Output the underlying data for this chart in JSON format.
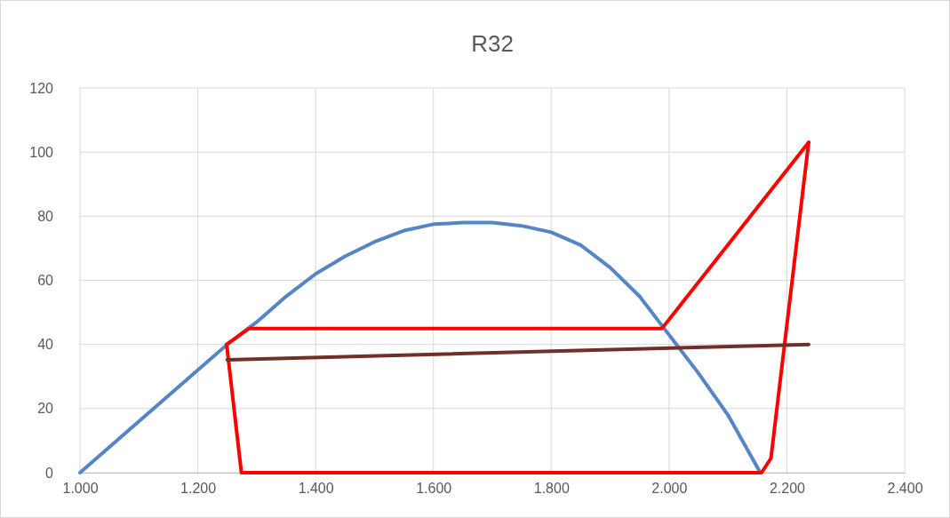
{
  "chart_data": {
    "type": "line",
    "title": "R32",
    "xlim": [
      1000,
      2400
    ],
    "xticks": [
      {
        "value": 1000,
        "label": "1.000"
      },
      {
        "value": 1200,
        "label": "1.200"
      },
      {
        "value": 1400,
        "label": "1.400"
      },
      {
        "value": 1600,
        "label": "1.600"
      },
      {
        "value": 1800,
        "label": "1.800"
      },
      {
        "value": 2000,
        "label": "2.000"
      },
      {
        "value": 2200,
        "label": "2.200"
      },
      {
        "value": 2400,
        "label": "2.400"
      }
    ],
    "ylim": [
      0,
      120
    ],
    "yticks": [
      0,
      20,
      40,
      60,
      80,
      100,
      120
    ],
    "grid": true,
    "marker": "none",
    "line_style": "solid",
    "series": [
      {
        "color": "#5585c5",
        "x": [
          1000,
          1100,
          1200,
          1250,
          1300,
          1350,
          1400,
          1450,
          1500,
          1550,
          1600,
          1650,
          1700,
          1750,
          1800,
          1850,
          1900,
          1950,
          2000,
          2050,
          2100,
          2155
        ],
        "values": [
          0,
          16,
          32,
          40,
          47,
          55,
          62,
          67.5,
          72,
          75.5,
          77.5,
          78,
          78,
          77,
          75,
          71,
          64,
          55,
          43,
          31,
          18,
          0
        ]
      },
      {
        "color": "#ff0000",
        "x": [
          1249,
          1287,
          1988,
          2237
        ],
        "values": [
          40,
          45,
          45,
          103
        ]
      },
      {
        "color": "#ff0000",
        "x": [
          1249,
          1274,
          2157,
          2173,
          2237
        ],
        "values": [
          40,
          0,
          0,
          4.5,
          103
        ]
      },
      {
        "color": "#722f2a",
        "x": [
          1250,
          2237
        ],
        "values": [
          35.2,
          40
        ]
      }
    ]
  }
}
